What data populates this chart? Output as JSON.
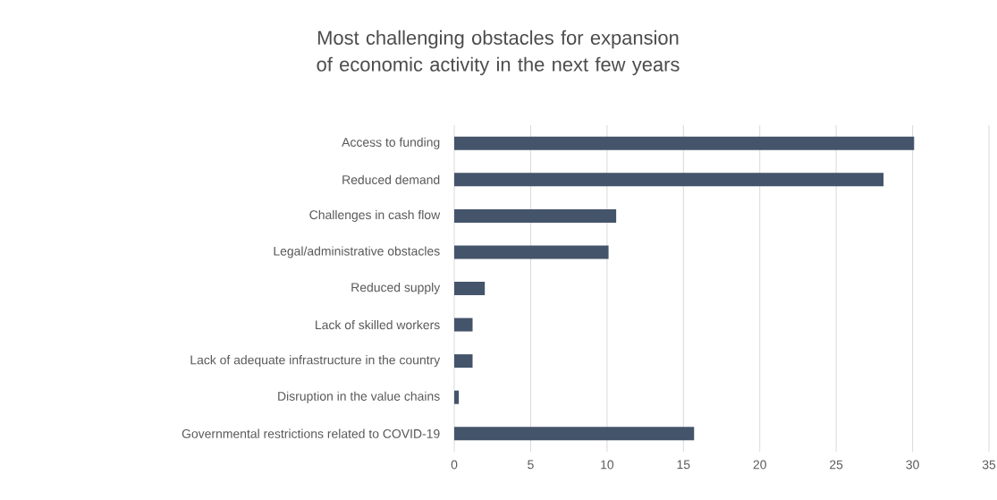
{
  "chart_data": {
    "type": "bar",
    "orientation": "horizontal",
    "title": "Most challenging obstacles for expansion of economic activity in the next few years",
    "categories": [
      "Access to funding",
      "Reduced demand",
      "Challenges in cash flow",
      "Legal/administrative obstacles",
      "Reduced supply",
      "Lack of skilled workers",
      "Lack of adequate infrastructure in the country",
      "Disruption in the value chains",
      "Governmental restrictions related to COVID-19"
    ],
    "values": [
      30.1,
      28.1,
      10.6,
      10.1,
      2.0,
      1.2,
      1.2,
      0.3,
      15.7
    ],
    "color": "#44546a",
    "xlim": [
      0,
      35
    ],
    "xticks": [
      0,
      5,
      10,
      15,
      20,
      25,
      30,
      35
    ],
    "grid": "x"
  }
}
